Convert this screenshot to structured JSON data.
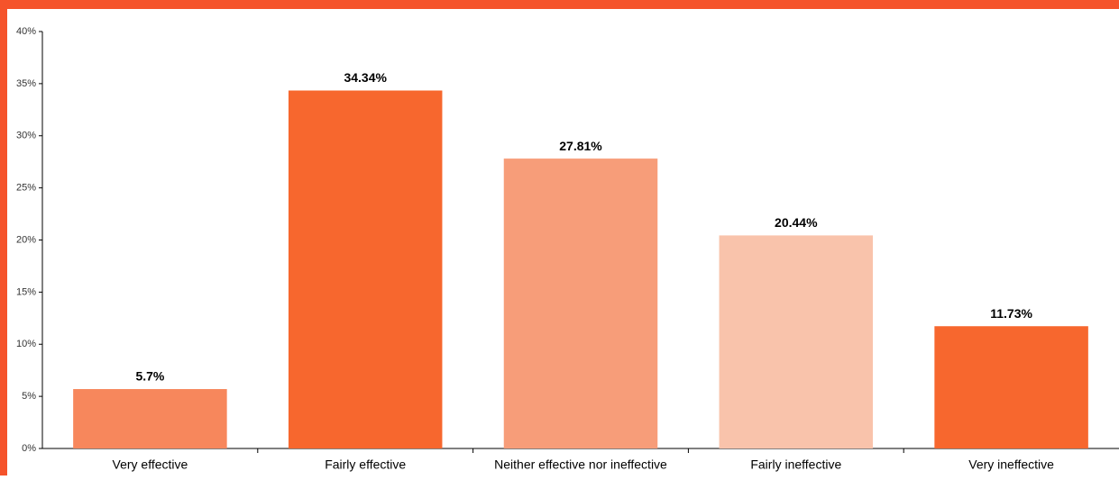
{
  "chart_data": {
    "type": "bar",
    "categories": [
      "Very effective",
      "Fairly effective",
      "Neither effective nor ineffective",
      "Fairly ineffective",
      "Very ineffective"
    ],
    "values": [
      5.7,
      34.34,
      27.81,
      20.44,
      11.73
    ],
    "value_labels": [
      "5.7%",
      "34.34%",
      "27.81%",
      "20.44%",
      "11.73%"
    ],
    "colors": [
      "#f7875c",
      "#f7672e",
      "#f79d79",
      "#f9c3ab",
      "#f7672e"
    ],
    "ylim": [
      0,
      40
    ],
    "yticks": [
      {
        "value": 0,
        "label": "0%"
      },
      {
        "value": 5,
        "label": "5%"
      },
      {
        "value": 10,
        "label": "10%"
      },
      {
        "value": 15,
        "label": "15%"
      },
      {
        "value": 20,
        "label": "20%"
      },
      {
        "value": 25,
        "label": "25%"
      },
      {
        "value": 30,
        "label": "30%"
      },
      {
        "value": 35,
        "label": "35%"
      },
      {
        "value": 40,
        "label": "40%"
      }
    ],
    "grid": false
  }
}
